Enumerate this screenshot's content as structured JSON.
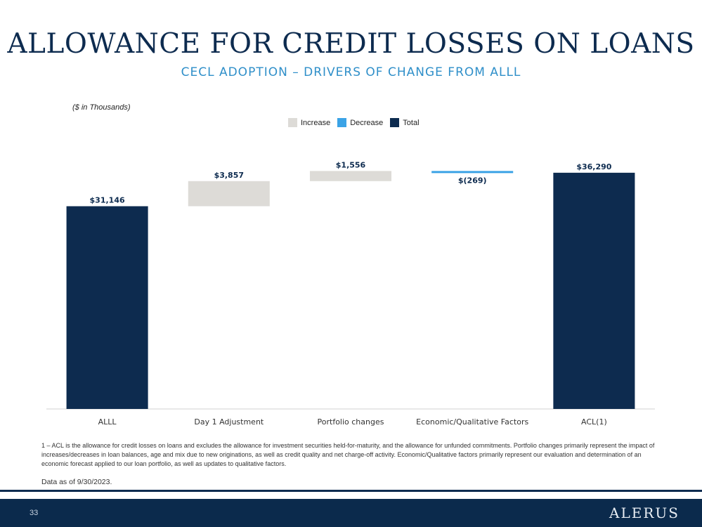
{
  "title": "ALLOWANCE FOR CREDIT LOSSES ON LOANS",
  "subtitle": "CECL ADOPTION – DRIVERS OF CHANGE FROM ALLL",
  "units_note": "($ in Thousands)",
  "legend": [
    {
      "label": "Increase",
      "color": "#dddbd7"
    },
    {
      "label": "Decrease",
      "color": "#3ba3e6"
    },
    {
      "label": "Total",
      "color": "#0d2b4f"
    }
  ],
  "chart_data": {
    "type": "bar",
    "subtype": "waterfall",
    "categories": [
      "ALLL",
      "Day 1 Adjustment",
      "Portfolio changes",
      "Economic/Qualitative Factors",
      "ACL(1)"
    ],
    "values": [
      31146,
      3857,
      1556,
      -269,
      36290
    ],
    "kinds": [
      "total",
      "increase",
      "increase",
      "decrease",
      "total"
    ],
    "data_labels": [
      "$31,146",
      "$3,857",
      "$1,556",
      "$(269)",
      "$36,290"
    ],
    "ylim": [
      0,
      38000
    ],
    "grid": false,
    "legend_position": "top"
  },
  "footnote": "1 – ACL is the allowance for credit losses on loans and excludes the allowance for investment securities held-for-maturity, and the allowance for unfunded commitments. Portfolio changes primarily represent the impact of increases/decreases in loan balances, age and mix due to new originations, as well as credit quality and net charge-off activity. Economic/Qualitative factors primarily represent our evaluation and determination of an economic forecast applied to our loan portfolio, as well as updates to qualitative factors.",
  "as_of": "Data as of 9/30/2023.",
  "footer": {
    "page_number": "33",
    "logo_text": "ALERUS"
  }
}
